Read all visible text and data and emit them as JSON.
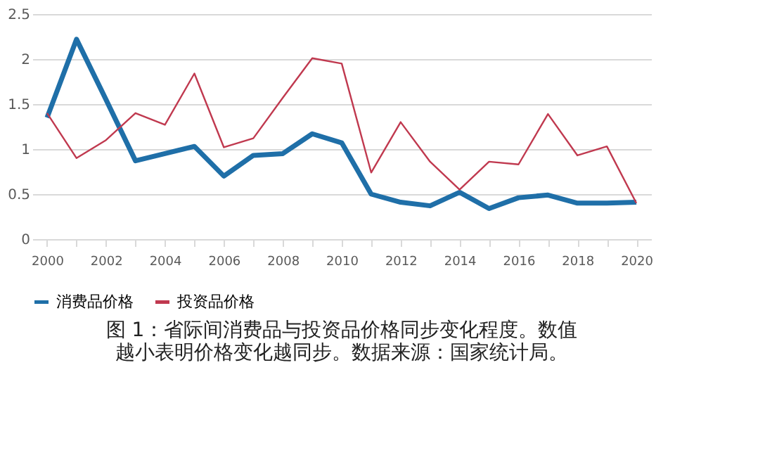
{
  "chart_data": {
    "type": "line",
    "categories": [
      "2000",
      null,
      "2002",
      null,
      "2004",
      null,
      "2006",
      null,
      "2008",
      null,
      "2010",
      null,
      "2012",
      null,
      "2014",
      null,
      "2016",
      null,
      "2018",
      null,
      "2020"
    ],
    "series": [
      {
        "name": "消费品价格",
        "color": "#1f6fa8",
        "values": [
          1.35,
          2.22,
          1.55,
          0.87,
          0.95,
          1.03,
          0.7,
          0.93,
          0.95,
          1.17,
          1.07,
          0.5,
          0.41,
          0.37,
          0.52,
          0.34,
          0.46,
          0.49,
          0.4,
          0.4,
          0.41
        ]
      },
      {
        "name": "投资品价格",
        "color": "#c0394f",
        "values": [
          1.4,
          0.9,
          1.1,
          1.4,
          1.27,
          1.84,
          1.02,
          1.12,
          1.57,
          2.01,
          1.95,
          0.74,
          1.3,
          0.86,
          0.55,
          0.86,
          0.83,
          1.39,
          0.93,
          1.03,
          0.4
        ]
      }
    ],
    "ylim": [
      0,
      2.5
    ],
    "yticks": [
      0,
      0.5,
      1,
      1.5,
      2,
      2.5
    ],
    "grid": "y",
    "legend": "bottom",
    "annotations": [
      "图 1：省际间消费品与投资品价格同步变化程度。数值越小表明价格变化越同步。数据来源：国家统计局。"
    ]
  }
}
